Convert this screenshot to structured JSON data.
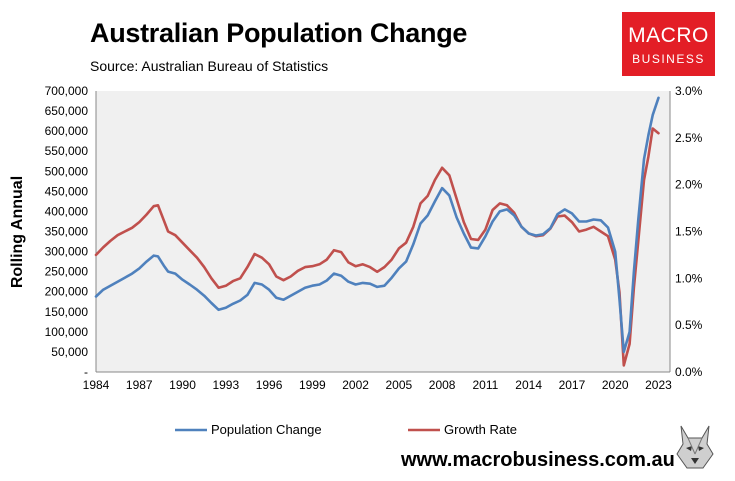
{
  "header": {
    "title": "Australian Population Change",
    "source": "Source: Australian Bureau of Statistics"
  },
  "logo": {
    "line1": "MACRO",
    "line2": "BUSINESS"
  },
  "footer": {
    "url": "www.macrobusiness.com.au"
  },
  "colors": {
    "population": "#4f81bd",
    "growth": "#c0504d",
    "plot_bg": "#f0f0f0",
    "logo_bg": "#e31e26"
  },
  "chart_data": {
    "type": "line",
    "title": "Australian Population Change",
    "xlabel": "",
    "ylabel": "Rolling Annual",
    "y2label": "",
    "x_ticks": [
      "1984",
      "1987",
      "1990",
      "1993",
      "1996",
      "1999",
      "2002",
      "2005",
      "2008",
      "2011",
      "2014",
      "2017",
      "2020",
      "2023"
    ],
    "y_ticks": [
      "-",
      "50,000",
      "100,000",
      "150,000",
      "200,000",
      "250,000",
      "300,000",
      "350,000",
      "400,000",
      "450,000",
      "500,000",
      "550,000",
      "600,000",
      "650,000",
      "700,000"
    ],
    "y2_ticks": [
      "0.0%",
      "0.5%",
      "1.0%",
      "1.5%",
      "2.0%",
      "2.5%",
      "3.0%"
    ],
    "xlim": [
      1984,
      2023.8
    ],
    "ylim": [
      0,
      700000
    ],
    "y2lim": [
      0,
      3.0
    ],
    "legend_position": "bottom",
    "series": [
      {
        "name": "Population Change",
        "axis": "left",
        "x": [
          1984,
          1984.5,
          1985,
          1985.5,
          1986,
          1986.5,
          1987,
          1987.5,
          1988,
          1988.3,
          1988.7,
          1989,
          1989.5,
          1990,
          1990.5,
          1991,
          1991.5,
          1992,
          1992.5,
          1993,
          1993.5,
          1994,
          1994.5,
          1995,
          1995.5,
          1996,
          1996.5,
          1997,
          1997.5,
          1998,
          1998.5,
          1999,
          1999.5,
          2000,
          2000.5,
          2001,
          2001.5,
          2002,
          2002.5,
          2003,
          2003.5,
          2004,
          2004.5,
          2005,
          2005.5,
          2006,
          2006.5,
          2007,
          2007.5,
          2008,
          2008.5,
          2009,
          2009.5,
          2010,
          2010.5,
          2011,
          2011.5,
          2012,
          2012.5,
          2013,
          2013.5,
          2014,
          2014.5,
          2015,
          2015.5,
          2016,
          2016.5,
          2017,
          2017.5,
          2018,
          2018.5,
          2019,
          2019.5,
          2020,
          2020.3,
          2020.6,
          2021,
          2021.3,
          2021.6,
          2022,
          2022.3,
          2022.6,
          2023
        ],
        "y": [
          188000,
          205000,
          215000,
          225000,
          235000,
          245000,
          258000,
          275000,
          290000,
          288000,
          265000,
          250000,
          245000,
          230000,
          218000,
          205000,
          190000,
          172000,
          155000,
          160000,
          170000,
          178000,
          192000,
          222000,
          218000,
          205000,
          185000,
          180000,
          190000,
          200000,
          210000,
          215000,
          218000,
          228000,
          245000,
          240000,
          225000,
          218000,
          222000,
          220000,
          212000,
          215000,
          235000,
          258000,
          275000,
          318000,
          370000,
          390000,
          425000,
          458000,
          440000,
          385000,
          345000,
          310000,
          308000,
          338000,
          375000,
          400000,
          405000,
          390000,
          362000,
          345000,
          340000,
          343000,
          358000,
          393000,
          405000,
          395000,
          375000,
          375000,
          380000,
          378000,
          360000,
          300000,
          180000,
          50000,
          100000,
          250000,
          380000,
          530000,
          590000,
          640000,
          683000
        ]
      },
      {
        "name": "Growth Rate",
        "axis": "right",
        "x": [
          1984,
          1984.5,
          1985,
          1985.5,
          1986,
          1986.5,
          1987,
          1987.5,
          1988,
          1988.3,
          1988.7,
          1989,
          1989.5,
          1990,
          1990.5,
          1991,
          1991.5,
          1992,
          1992.5,
          1993,
          1993.5,
          1994,
          1994.5,
          1995,
          1995.5,
          1996,
          1996.5,
          1997,
          1997.5,
          1998,
          1998.5,
          1999,
          1999.5,
          2000,
          2000.5,
          2001,
          2001.5,
          2002,
          2002.5,
          2003,
          2003.5,
          2004,
          2004.5,
          2005,
          2005.5,
          2006,
          2006.5,
          2007,
          2007.5,
          2008,
          2008.5,
          2009,
          2009.5,
          2010,
          2010.5,
          2011,
          2011.5,
          2012,
          2012.5,
          2013,
          2013.5,
          2014,
          2014.5,
          2015,
          2015.5,
          2016,
          2016.5,
          2017,
          2017.5,
          2018,
          2018.5,
          2019,
          2019.5,
          2020,
          2020.3,
          2020.6,
          2021,
          2021.3,
          2021.6,
          2022,
          2022.3,
          2022.6,
          2023
        ],
        "y": [
          1.25,
          1.33,
          1.4,
          1.46,
          1.5,
          1.54,
          1.6,
          1.68,
          1.77,
          1.78,
          1.62,
          1.5,
          1.46,
          1.38,
          1.3,
          1.22,
          1.12,
          1.0,
          0.9,
          0.92,
          0.97,
          1.0,
          1.12,
          1.26,
          1.22,
          1.15,
          1.02,
          0.98,
          1.02,
          1.08,
          1.12,
          1.13,
          1.15,
          1.2,
          1.3,
          1.28,
          1.17,
          1.13,
          1.15,
          1.12,
          1.07,
          1.12,
          1.2,
          1.32,
          1.38,
          1.55,
          1.8,
          1.88,
          2.05,
          2.18,
          2.1,
          1.85,
          1.6,
          1.42,
          1.41,
          1.52,
          1.73,
          1.8,
          1.78,
          1.7,
          1.55,
          1.48,
          1.45,
          1.46,
          1.53,
          1.66,
          1.67,
          1.6,
          1.5,
          1.52,
          1.55,
          1.5,
          1.45,
          1.2,
          0.85,
          0.07,
          0.3,
          0.9,
          1.4,
          2.05,
          2.3,
          2.6,
          2.55
        ]
      }
    ]
  }
}
